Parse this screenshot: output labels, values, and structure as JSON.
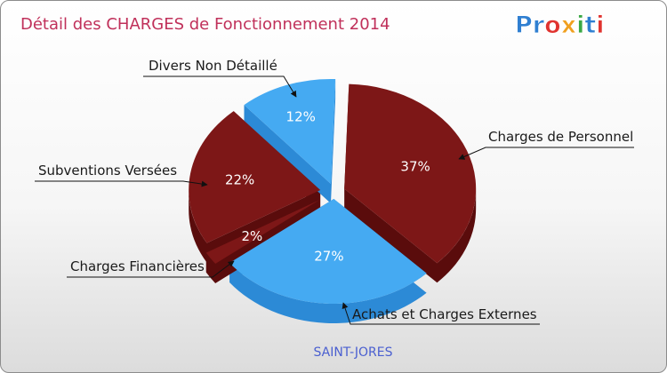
{
  "header": {
    "title": "Détail des CHARGES de Fonctionnement 2014",
    "logo_text": "Proxiti"
  },
  "colors": {
    "title": "#c0305a",
    "commune": "#4a5fd0",
    "dark_red_top": "#7d1717",
    "dark_red_side": "#5a0c0c",
    "blue_top": "#45aaf2",
    "blue_side": "#2c8ad6"
  },
  "chart_data": {
    "type": "pie",
    "title": "Détail des CHARGES de Fonctionnement 2014",
    "caption": "SAINT-JORES",
    "slices": [
      {
        "label": "Charges de Personnel",
        "value": 37,
        "pct_label": "37%",
        "color": "#7d1717"
      },
      {
        "label": "Achats et Charges Externes",
        "value": 27,
        "pct_label": "27%",
        "color": "#45aaf2"
      },
      {
        "label": "Charges Financières",
        "value": 2,
        "pct_label": "2%",
        "color": "#7d1717"
      },
      {
        "label": "Subventions Versées",
        "value": 22,
        "pct_label": "22%",
        "color": "#7d1717"
      },
      {
        "label": "Divers Non Détaillé",
        "value": 12,
        "pct_label": "12%",
        "color": "#45aaf2"
      }
    ]
  }
}
